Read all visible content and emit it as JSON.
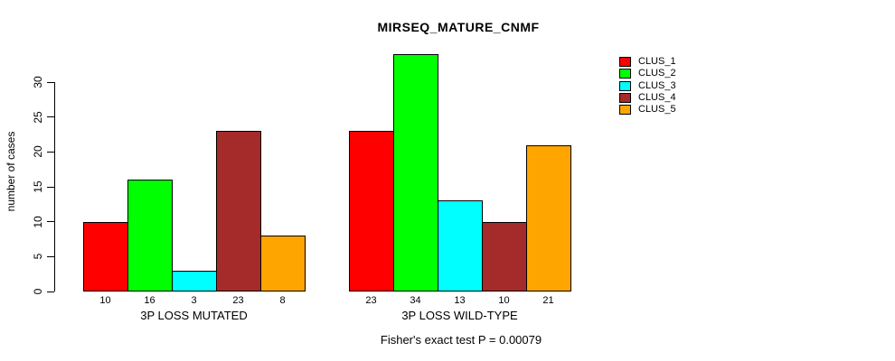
{
  "title": "MIRSEQ_MATURE_CNMF",
  "footer": "Fisher's exact test P = 0.00079",
  "chart_data": {
    "type": "bar",
    "title": "MIRSEQ_MATURE_CNMF",
    "xlabel": "",
    "ylabel": "number of cases",
    "ylim": [
      0,
      30
    ],
    "yticks": [
      0,
      5,
      10,
      15,
      20,
      25,
      30
    ],
    "grid": false,
    "legend_position": "top-right",
    "series": [
      {
        "name": "CLUS_1",
        "color": "#FF0000"
      },
      {
        "name": "CLUS_2",
        "color": "#00FF00"
      },
      {
        "name": "CLUS_3",
        "color": "#00FFFF"
      },
      {
        "name": "CLUS_4",
        "color": "#A52A2A"
      },
      {
        "name": "CLUS_5",
        "color": "#FFA500"
      }
    ],
    "groups": [
      {
        "label": "3P LOSS MUTATED",
        "values": [
          10,
          16,
          3,
          23,
          8
        ]
      },
      {
        "label": "3P LOSS WILD-TYPE",
        "values": [
          23,
          34,
          13,
          10,
          21
        ]
      }
    ],
    "bar_value_labels": true,
    "annotation": "Fisher's exact test P = 0.00079"
  }
}
